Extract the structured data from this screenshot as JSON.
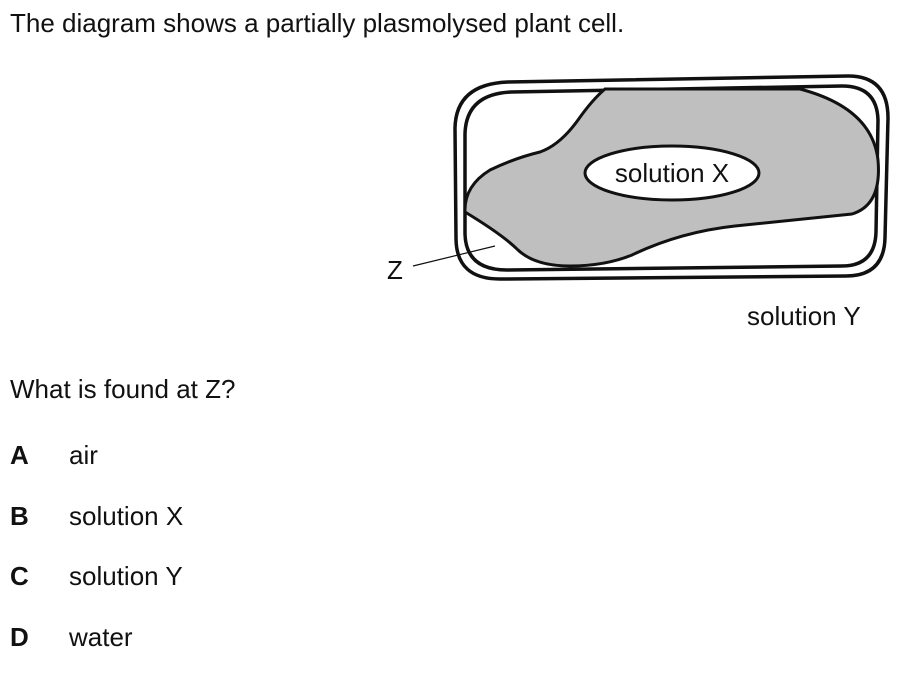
{
  "stem": "The diagram shows a partially plasmolysed plant cell.",
  "diagram": {
    "label_vacuole": "solution X",
    "label_outside": "solution Y",
    "label_z": "Z",
    "colors": {
      "outline": "#111111",
      "cytoplasm": "#bfbfbf",
      "vacuole": "#ffffff"
    }
  },
  "question": "What is found at Z?",
  "options": [
    {
      "letter": "A",
      "text": "air"
    },
    {
      "letter": "B",
      "text": "solution X"
    },
    {
      "letter": "C",
      "text": "solution Y"
    },
    {
      "letter": "D",
      "text": "water"
    }
  ]
}
